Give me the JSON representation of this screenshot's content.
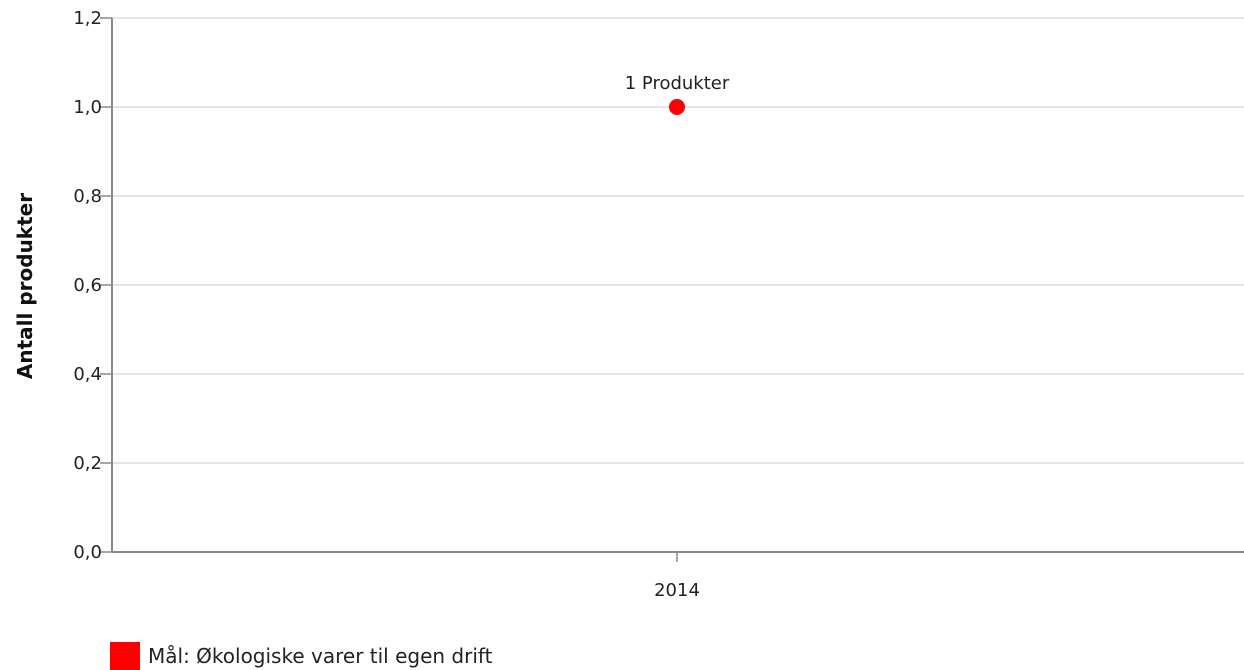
{
  "chart_data": {
    "type": "scatter",
    "ylabel": "Antall produkter",
    "ylim": [
      0,
      1.2
    ],
    "yticks": [
      "0,0",
      "0,2",
      "0,4",
      "0,6",
      "0,8",
      "1,0",
      "1,2"
    ],
    "categories": [
      "2014"
    ],
    "series": [
      {
        "name": "Mål: Økologiske varer til egen drift",
        "color": "#ff0000",
        "values": [
          1
        ],
        "labels": [
          "1 Produkter"
        ]
      }
    ],
    "grid": true,
    "legend_position": "bottom-left"
  },
  "colors": {
    "grid": "#e4e4e4",
    "axis": "#888888",
    "series": "#ff0000"
  }
}
